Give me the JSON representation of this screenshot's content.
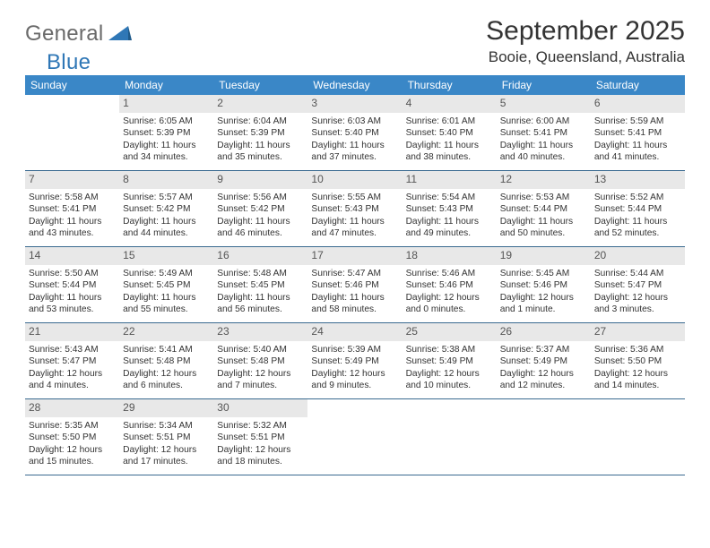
{
  "logo": {
    "general": "General",
    "blue": "Blue"
  },
  "header": {
    "month_title": "September 2025",
    "location": "Booie, Queensland, Australia"
  },
  "colors": {
    "header_bar": "#3a87c7",
    "daynum_bg": "#e8e8e8",
    "week_divider": "#3a6a90",
    "logo_blue": "#2f77b6",
    "logo_gray": "#6a6a6a"
  },
  "weekdays": [
    "Sunday",
    "Monday",
    "Tuesday",
    "Wednesday",
    "Thursday",
    "Friday",
    "Saturday"
  ],
  "weeks": [
    [
      {
        "blank": true
      },
      {
        "n": "1",
        "sr": "Sunrise: 6:05 AM",
        "ss": "Sunset: 5:39 PM",
        "dl": "Daylight: 11 hours and 34 minutes."
      },
      {
        "n": "2",
        "sr": "Sunrise: 6:04 AM",
        "ss": "Sunset: 5:39 PM",
        "dl": "Daylight: 11 hours and 35 minutes."
      },
      {
        "n": "3",
        "sr": "Sunrise: 6:03 AM",
        "ss": "Sunset: 5:40 PM",
        "dl": "Daylight: 11 hours and 37 minutes."
      },
      {
        "n": "4",
        "sr": "Sunrise: 6:01 AM",
        "ss": "Sunset: 5:40 PM",
        "dl": "Daylight: 11 hours and 38 minutes."
      },
      {
        "n": "5",
        "sr": "Sunrise: 6:00 AM",
        "ss": "Sunset: 5:41 PM",
        "dl": "Daylight: 11 hours and 40 minutes."
      },
      {
        "n": "6",
        "sr": "Sunrise: 5:59 AM",
        "ss": "Sunset: 5:41 PM",
        "dl": "Daylight: 11 hours and 41 minutes."
      }
    ],
    [
      {
        "n": "7",
        "sr": "Sunrise: 5:58 AM",
        "ss": "Sunset: 5:41 PM",
        "dl": "Daylight: 11 hours and 43 minutes."
      },
      {
        "n": "8",
        "sr": "Sunrise: 5:57 AM",
        "ss": "Sunset: 5:42 PM",
        "dl": "Daylight: 11 hours and 44 minutes."
      },
      {
        "n": "9",
        "sr": "Sunrise: 5:56 AM",
        "ss": "Sunset: 5:42 PM",
        "dl": "Daylight: 11 hours and 46 minutes."
      },
      {
        "n": "10",
        "sr": "Sunrise: 5:55 AM",
        "ss": "Sunset: 5:43 PM",
        "dl": "Daylight: 11 hours and 47 minutes."
      },
      {
        "n": "11",
        "sr": "Sunrise: 5:54 AM",
        "ss": "Sunset: 5:43 PM",
        "dl": "Daylight: 11 hours and 49 minutes."
      },
      {
        "n": "12",
        "sr": "Sunrise: 5:53 AM",
        "ss": "Sunset: 5:44 PM",
        "dl": "Daylight: 11 hours and 50 minutes."
      },
      {
        "n": "13",
        "sr": "Sunrise: 5:52 AM",
        "ss": "Sunset: 5:44 PM",
        "dl": "Daylight: 11 hours and 52 minutes."
      }
    ],
    [
      {
        "n": "14",
        "sr": "Sunrise: 5:50 AM",
        "ss": "Sunset: 5:44 PM",
        "dl": "Daylight: 11 hours and 53 minutes."
      },
      {
        "n": "15",
        "sr": "Sunrise: 5:49 AM",
        "ss": "Sunset: 5:45 PM",
        "dl": "Daylight: 11 hours and 55 minutes."
      },
      {
        "n": "16",
        "sr": "Sunrise: 5:48 AM",
        "ss": "Sunset: 5:45 PM",
        "dl": "Daylight: 11 hours and 56 minutes."
      },
      {
        "n": "17",
        "sr": "Sunrise: 5:47 AM",
        "ss": "Sunset: 5:46 PM",
        "dl": "Daylight: 11 hours and 58 minutes."
      },
      {
        "n": "18",
        "sr": "Sunrise: 5:46 AM",
        "ss": "Sunset: 5:46 PM",
        "dl": "Daylight: 12 hours and 0 minutes."
      },
      {
        "n": "19",
        "sr": "Sunrise: 5:45 AM",
        "ss": "Sunset: 5:46 PM",
        "dl": "Daylight: 12 hours and 1 minute."
      },
      {
        "n": "20",
        "sr": "Sunrise: 5:44 AM",
        "ss": "Sunset: 5:47 PM",
        "dl": "Daylight: 12 hours and 3 minutes."
      }
    ],
    [
      {
        "n": "21",
        "sr": "Sunrise: 5:43 AM",
        "ss": "Sunset: 5:47 PM",
        "dl": "Daylight: 12 hours and 4 minutes."
      },
      {
        "n": "22",
        "sr": "Sunrise: 5:41 AM",
        "ss": "Sunset: 5:48 PM",
        "dl": "Daylight: 12 hours and 6 minutes."
      },
      {
        "n": "23",
        "sr": "Sunrise: 5:40 AM",
        "ss": "Sunset: 5:48 PM",
        "dl": "Daylight: 12 hours and 7 minutes."
      },
      {
        "n": "24",
        "sr": "Sunrise: 5:39 AM",
        "ss": "Sunset: 5:49 PM",
        "dl": "Daylight: 12 hours and 9 minutes."
      },
      {
        "n": "25",
        "sr": "Sunrise: 5:38 AM",
        "ss": "Sunset: 5:49 PM",
        "dl": "Daylight: 12 hours and 10 minutes."
      },
      {
        "n": "26",
        "sr": "Sunrise: 5:37 AM",
        "ss": "Sunset: 5:49 PM",
        "dl": "Daylight: 12 hours and 12 minutes."
      },
      {
        "n": "27",
        "sr": "Sunrise: 5:36 AM",
        "ss": "Sunset: 5:50 PM",
        "dl": "Daylight: 12 hours and 14 minutes."
      }
    ],
    [
      {
        "n": "28",
        "sr": "Sunrise: 5:35 AM",
        "ss": "Sunset: 5:50 PM",
        "dl": "Daylight: 12 hours and 15 minutes."
      },
      {
        "n": "29",
        "sr": "Sunrise: 5:34 AM",
        "ss": "Sunset: 5:51 PM",
        "dl": "Daylight: 12 hours and 17 minutes."
      },
      {
        "n": "30",
        "sr": "Sunrise: 5:32 AM",
        "ss": "Sunset: 5:51 PM",
        "dl": "Daylight: 12 hours and 18 minutes."
      },
      {
        "blank": true
      },
      {
        "blank": true
      },
      {
        "blank": true
      },
      {
        "blank": true
      }
    ]
  ]
}
